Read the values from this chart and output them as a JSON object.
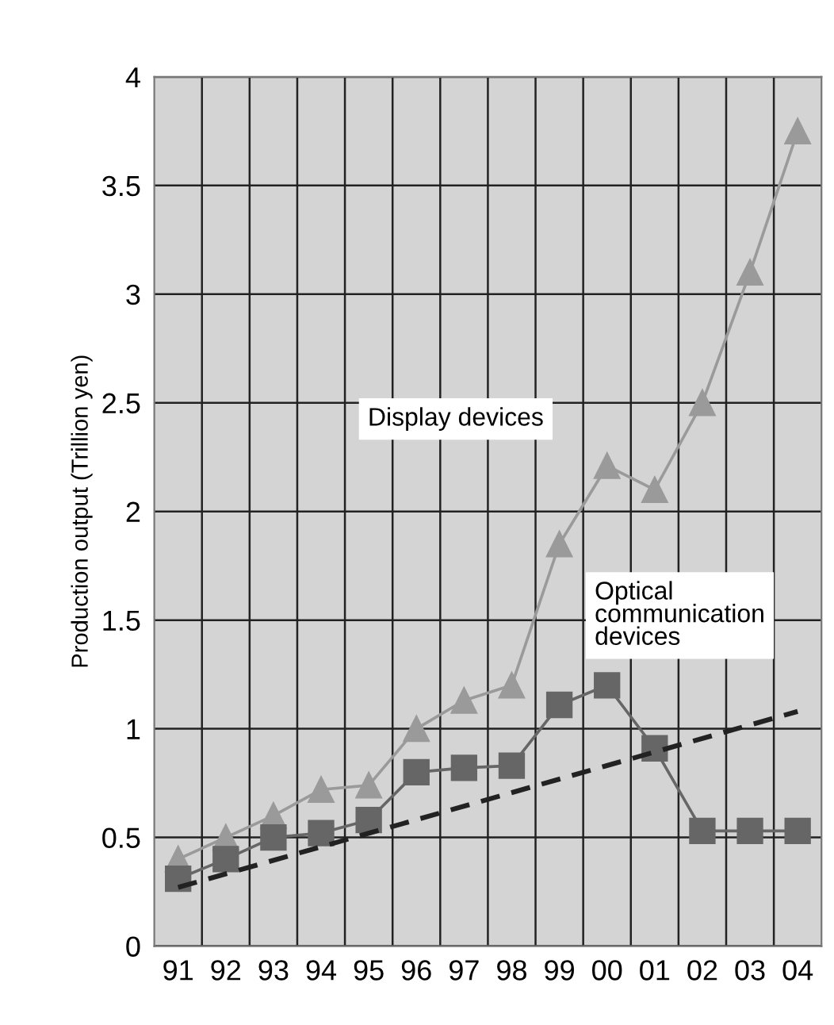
{
  "chart_data": {
    "type": "line",
    "ylabel": "Production output (Trillion yen)",
    "categories": [
      "91",
      "92",
      "93",
      "94",
      "95",
      "96",
      "97",
      "98",
      "99",
      "00",
      "01",
      "02",
      "03",
      "04"
    ],
    "series": [
      {
        "name": "Display devices",
        "color": "#9a9a9a",
        "marker": "triangle",
        "values": [
          0.4,
          0.5,
          0.6,
          0.72,
          0.74,
          1.0,
          1.13,
          1.2,
          1.85,
          2.21,
          2.1,
          2.5,
          3.1,
          3.75
        ]
      },
      {
        "name": "Optical communication devices",
        "color": "#666666",
        "marker": "square",
        "values": [
          0.31,
          0.4,
          0.5,
          0.52,
          0.58,
          0.8,
          0.82,
          0.83,
          1.11,
          1.2,
          0.91,
          0.53,
          0.53,
          0.53
        ]
      },
      {
        "color": "#222222",
        "marker": "none",
        "line_style": "dashed",
        "x": [
          "91",
          "04"
        ],
        "values": [
          0.27,
          1.08
        ]
      }
    ],
    "ylim": [
      0,
      4
    ],
    "yticks": [
      0,
      0.5,
      1,
      1.5,
      2,
      2.5,
      3,
      3.5,
      4
    ],
    "grid": true,
    "legend": false
  }
}
